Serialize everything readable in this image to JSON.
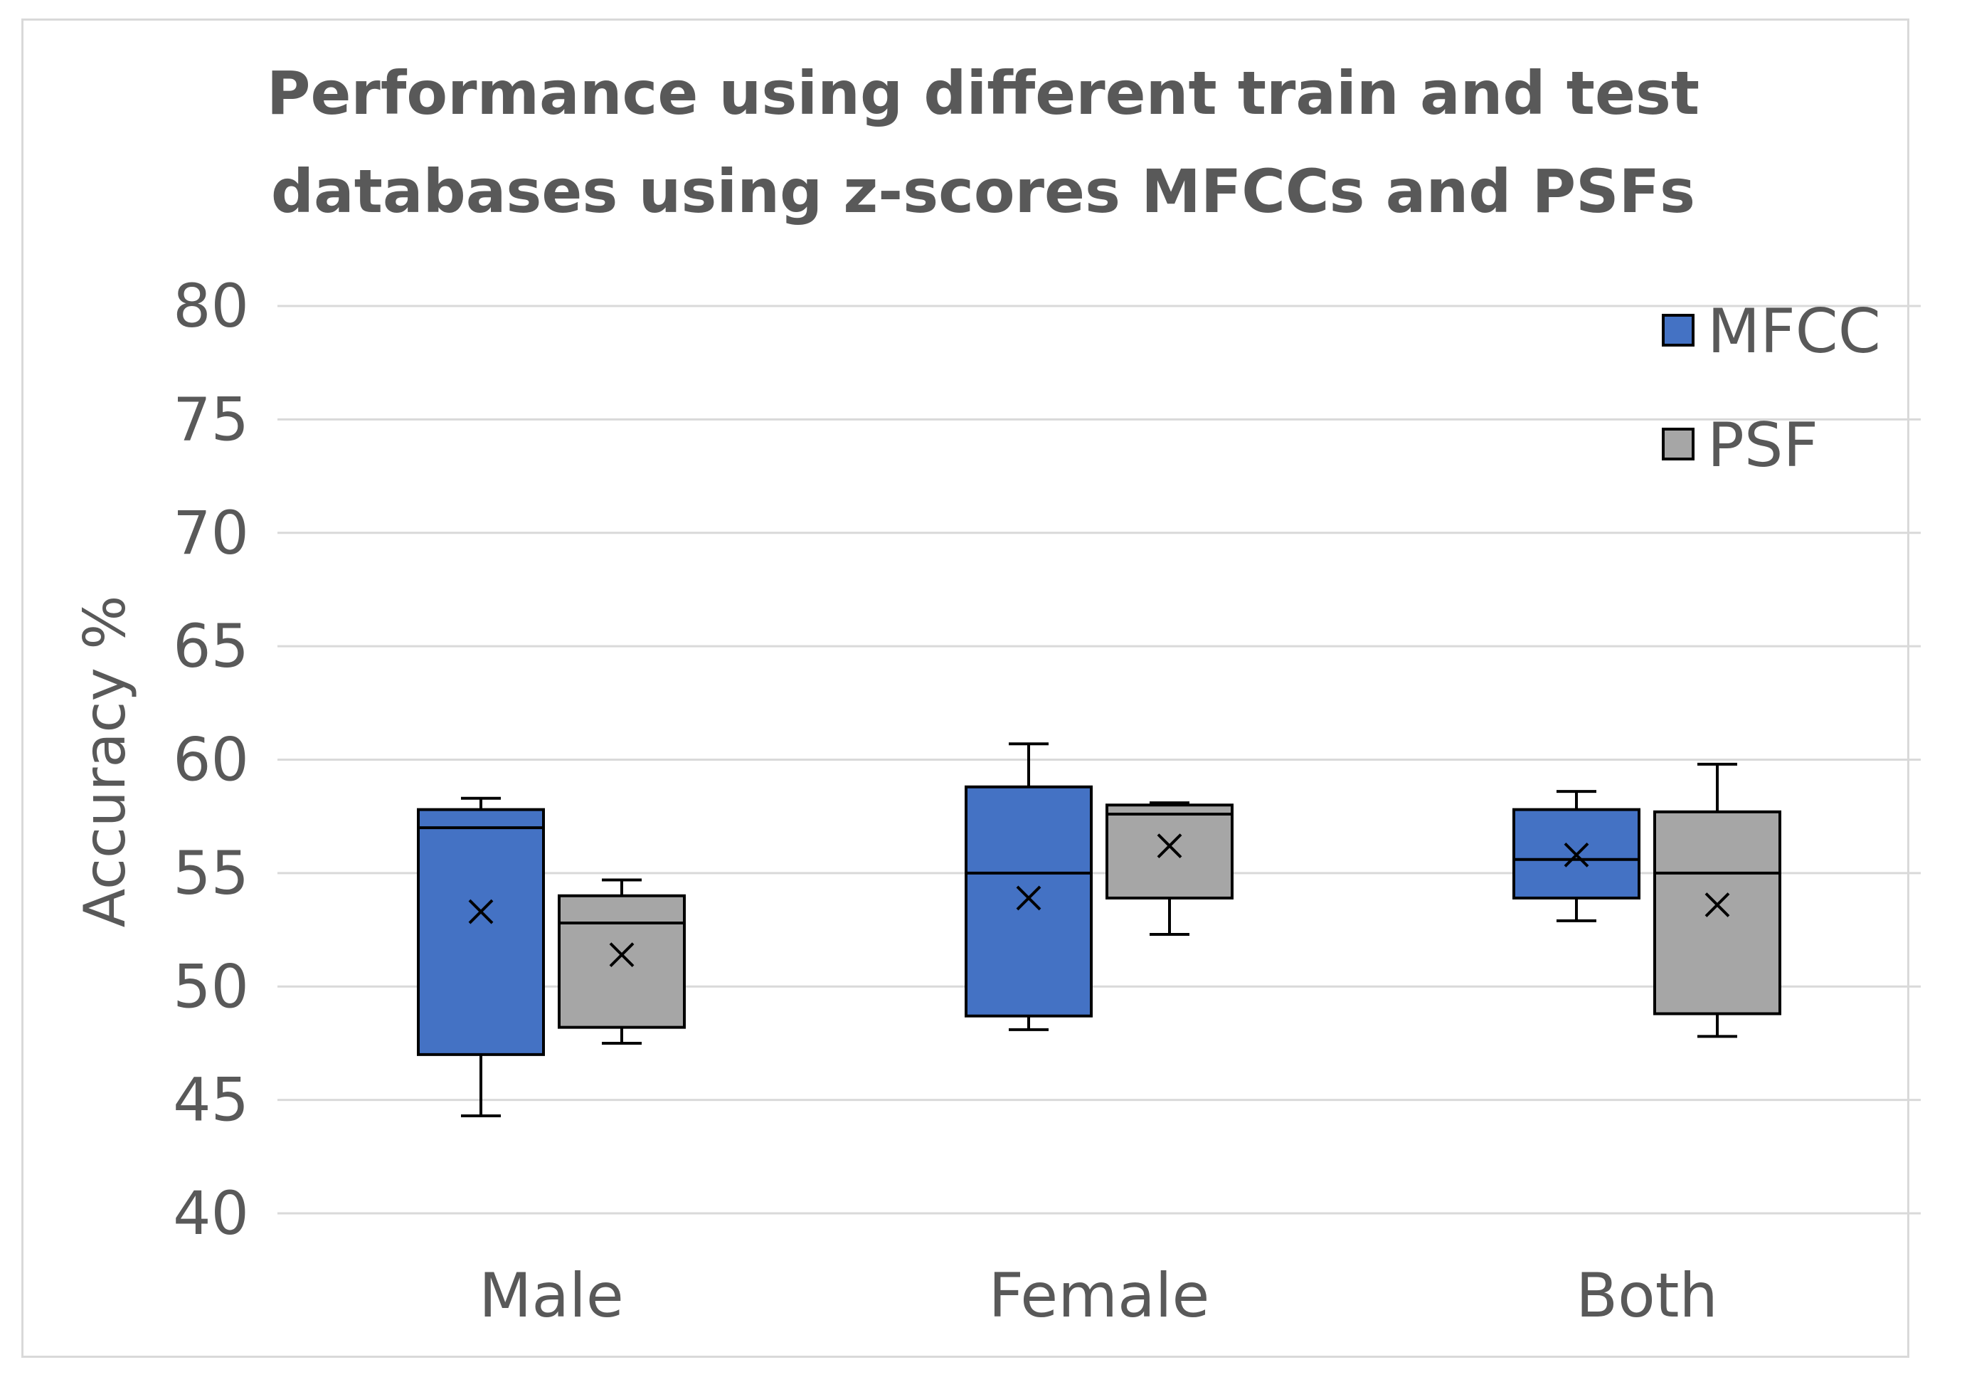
{
  "chart_data": {
    "type": "boxplot",
    "title_lines": [
      "Performance using different train and test",
      "databases using z-scores MFCCs and PSFs"
    ],
    "ylabel": "Accuracy %",
    "xlabel": "",
    "ylim": [
      40,
      80
    ],
    "yticks": [
      "40",
      "45",
      "50",
      "55",
      "60",
      "65",
      "70",
      "75",
      "80"
    ],
    "categories": [
      "Male",
      "Female",
      "Both"
    ],
    "legend_position": "top-right",
    "grid": true,
    "series": [
      {
        "name": "MFCC",
        "color": "#4472c4",
        "boxes": [
          {
            "min": 44.3,
            "q1": 47.0,
            "median": 57.0,
            "q3": 57.8,
            "max": 58.3,
            "mean": 53.3
          },
          {
            "min": 48.1,
            "q1": 48.7,
            "median": 55.0,
            "q3": 58.8,
            "max": 60.7,
            "mean": 53.9
          },
          {
            "min": 52.9,
            "q1": 53.9,
            "median": 55.6,
            "q3": 57.8,
            "max": 58.6,
            "mean": 55.8
          }
        ]
      },
      {
        "name": "PSF",
        "color": "#a6a6a6",
        "boxes": [
          {
            "min": 47.5,
            "q1": 48.2,
            "median": 52.8,
            "q3": 54.0,
            "max": 54.7,
            "mean": 51.4
          },
          {
            "min": 52.3,
            "q1": 53.9,
            "median": 57.6,
            "q3": 58.0,
            "max": 58.1,
            "mean": 56.2
          },
          {
            "min": 47.8,
            "q1": 48.8,
            "median": 55.0,
            "q3": 57.7,
            "max": 59.8,
            "mean": 53.6
          }
        ]
      }
    ]
  }
}
